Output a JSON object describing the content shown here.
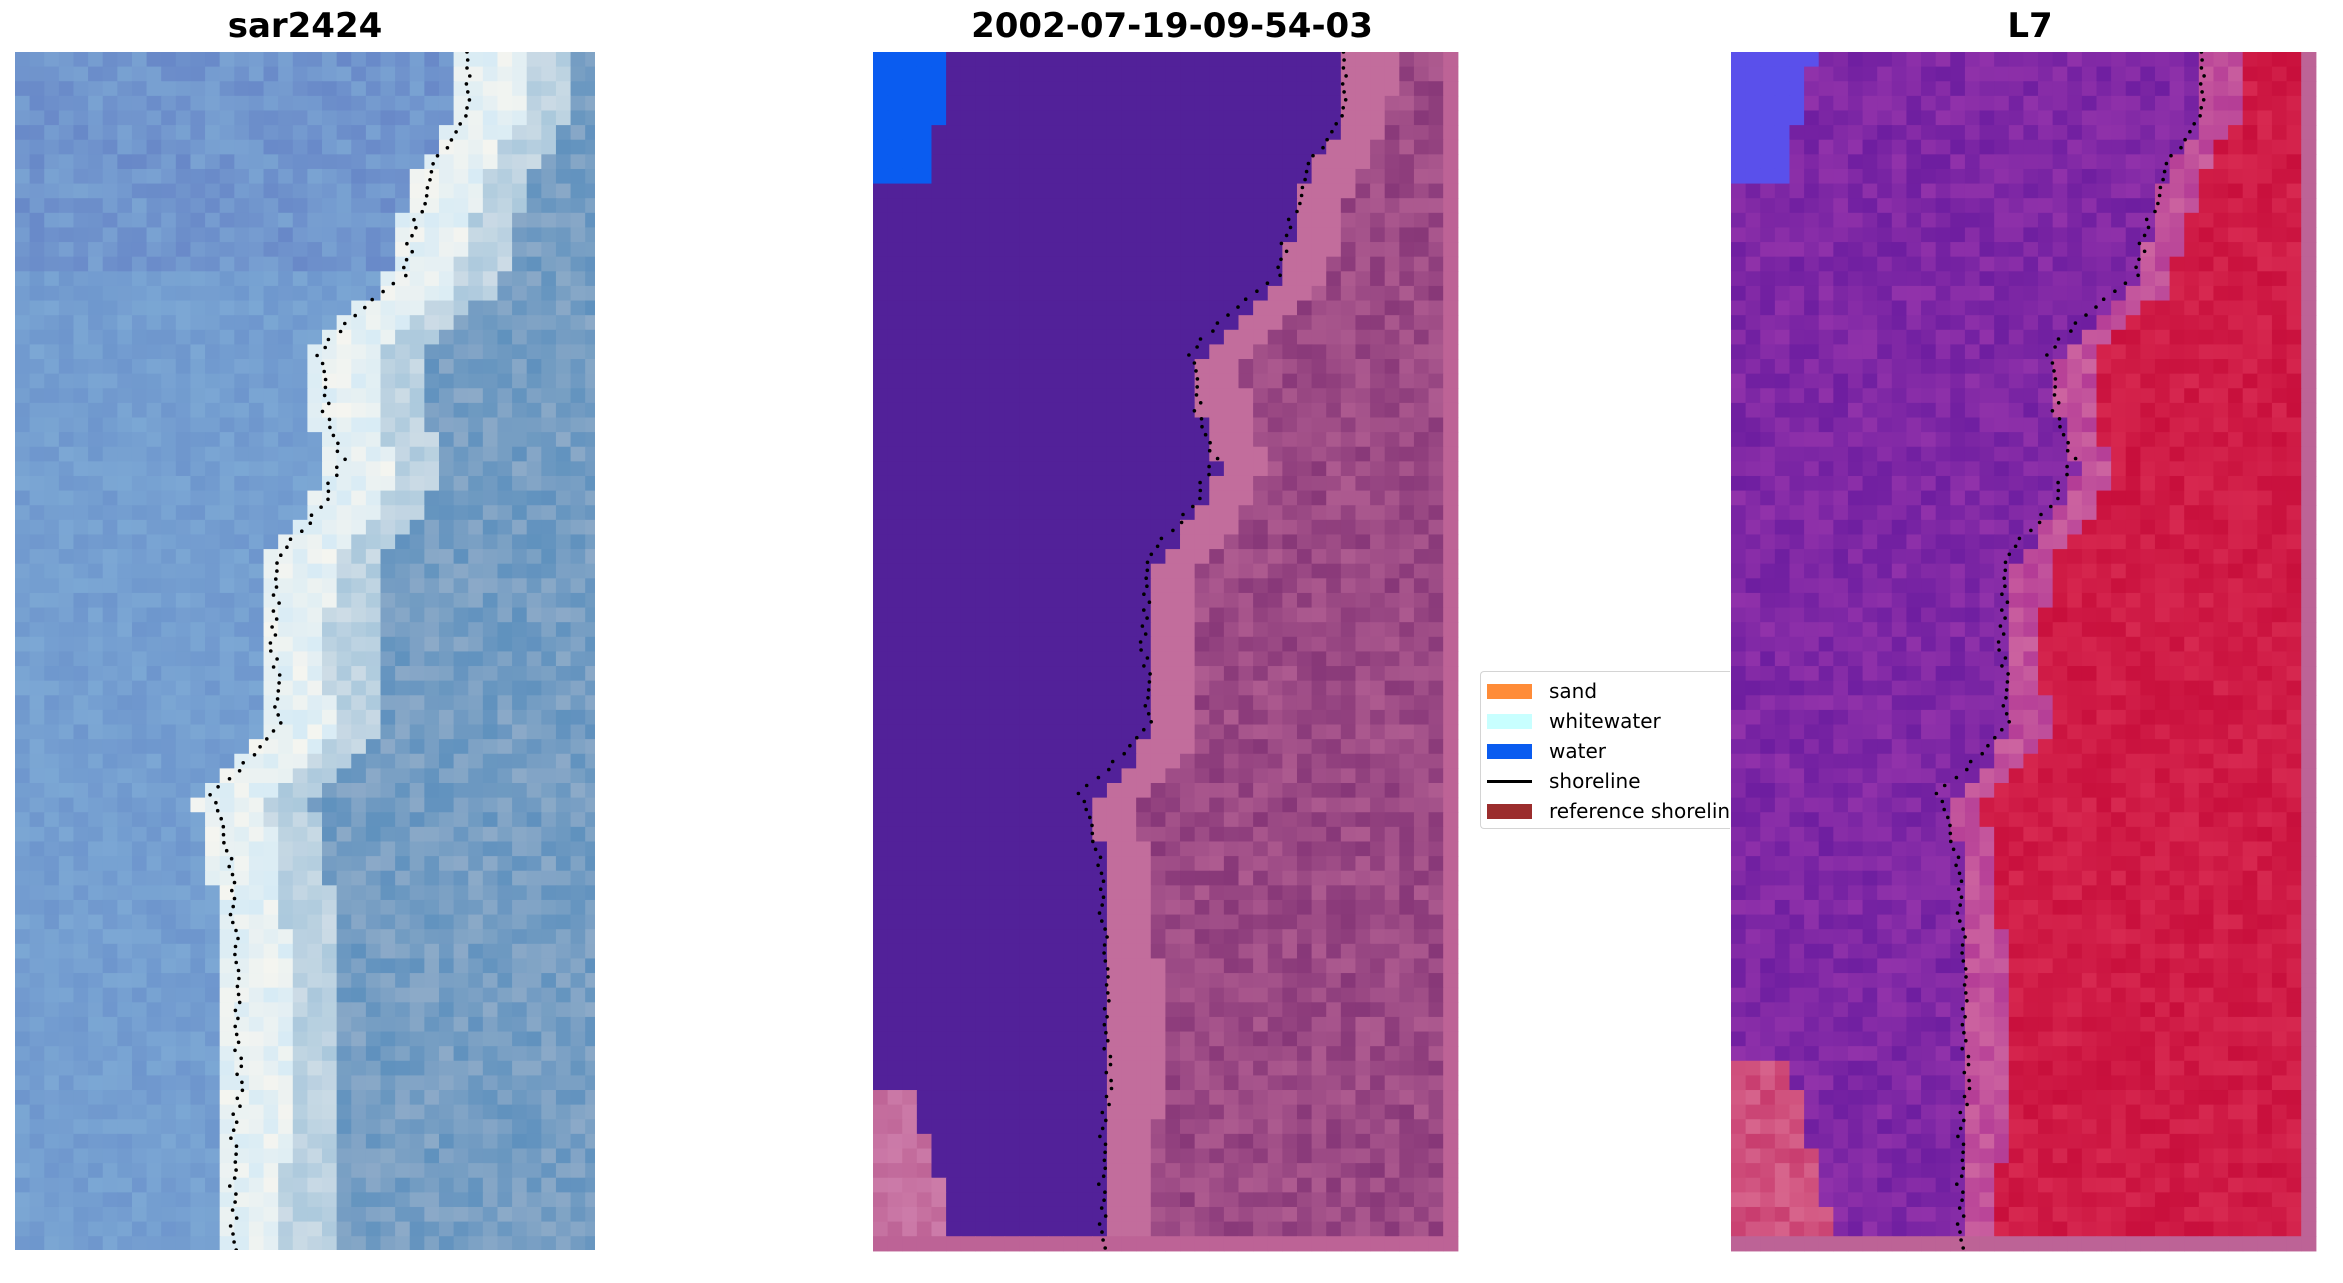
{
  "panels": [
    {
      "title": "sar2424"
    },
    {
      "title": "2002-07-19-09-54-03"
    },
    {
      "title": "L7"
    }
  ],
  "legend": {
    "items": [
      {
        "label": "sand",
        "color": "#ff8c38",
        "kind": "patch"
      },
      {
        "label": "whitewater",
        "color": "#c8ffff",
        "kind": "patch"
      },
      {
        "label": "water",
        "color": "#0a5cf0",
        "kind": "patch"
      },
      {
        "label": "shoreline",
        "color": "#000000",
        "kind": "line"
      },
      {
        "label": "reference shoreline",
        "color": "#9b2d2d",
        "kind": "patch"
      }
    ]
  },
  "colors": {
    "water_class": "#0a5cf0",
    "masked_sea": "#522199",
    "land_overlay": "#bd6396",
    "index_land": "#c8153c",
    "index_sea": "#7a22a6",
    "rgb_sea": "#6f8fc9"
  }
}
